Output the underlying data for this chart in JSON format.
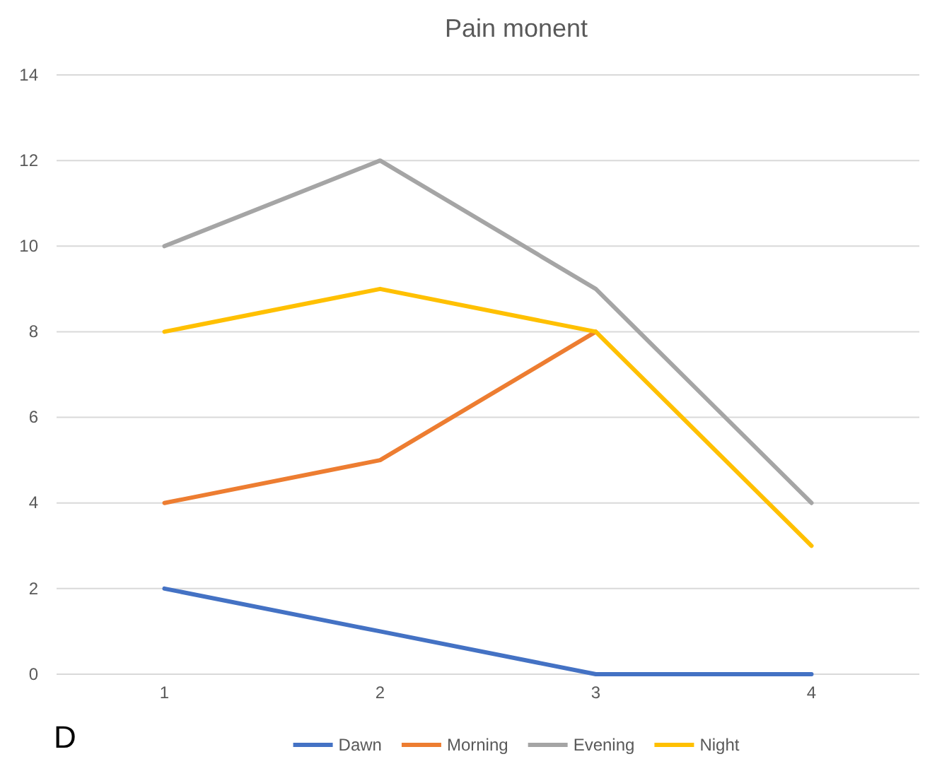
{
  "chart_data": {
    "type": "line",
    "title": "Pain monent",
    "categories": [
      "1",
      "2",
      "3",
      "4"
    ],
    "series": [
      {
        "name": "Dawn",
        "color": "#4472c4",
        "values": [
          2,
          1,
          0,
          0
        ]
      },
      {
        "name": "Morning",
        "color": "#ed7d31",
        "values": [
          4,
          5,
          8,
          null
        ]
      },
      {
        "name": "Evening",
        "color": "#a5a5a5",
        "values": [
          10,
          12,
          9,
          4
        ]
      },
      {
        "name": "Night",
        "color": "#ffc000",
        "values": [
          8,
          9,
          8,
          3
        ]
      }
    ],
    "ylim": [
      0,
      14
    ],
    "yticks": [
      0,
      2,
      4,
      6,
      8,
      10,
      12,
      14
    ],
    "grid": "y",
    "legend": "bottom",
    "marker": "none",
    "line_style": "solid",
    "annotations": [
      "D"
    ]
  }
}
